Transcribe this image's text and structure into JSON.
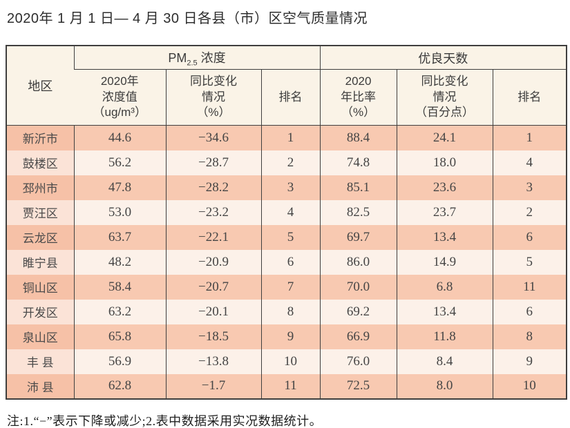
{
  "page": {
    "title": "2020年 1 月 1 日— 4 月 30 日各县（市）区空气质量情况",
    "note": "注:1.“−”表示下降或减少;2.表中数据采用实况数据统计。"
  },
  "table": {
    "header": {
      "region": "地区",
      "pm_group": {
        "prefix": "PM",
        "sub": "2.5",
        "suffix": " 浓度"
      },
      "good_group": "优良天数",
      "pm_value": "2020年\n浓度值\n（ug/m³）",
      "pm_change": "同比变化\n情况\n（%）",
      "pm_rank": "排名",
      "good_rate": "2020\n年比率\n（%）",
      "good_change": "同比变化\n情况\n（百分点）",
      "good_rank": "排名"
    },
    "columns": [
      "region",
      "pm_value",
      "pm_change",
      "pm_rank",
      "good_rate",
      "good_change",
      "good_rank"
    ],
    "rows": [
      {
        "region": "新沂市",
        "pm_value": "44.6",
        "pm_change": "−34.6",
        "pm_rank": "1",
        "good_rate": "88.4",
        "good_change": "24.1",
        "good_rank": "1"
      },
      {
        "region": "鼓楼区",
        "pm_value": "56.2",
        "pm_change": "−28.7",
        "pm_rank": "2",
        "good_rate": "74.8",
        "good_change": "18.0",
        "good_rank": "4"
      },
      {
        "region": "邳州市",
        "pm_value": "47.8",
        "pm_change": "−28.2",
        "pm_rank": "3",
        "good_rate": "85.1",
        "good_change": "23.6",
        "good_rank": "3"
      },
      {
        "region": "贾汪区",
        "pm_value": "53.0",
        "pm_change": "−23.2",
        "pm_rank": "4",
        "good_rate": "82.5",
        "good_change": "23.7",
        "good_rank": "2"
      },
      {
        "region": "云龙区",
        "pm_value": "63.7",
        "pm_change": "−22.1",
        "pm_rank": "5",
        "good_rate": "69.7",
        "good_change": "13.4",
        "good_rank": "6"
      },
      {
        "region": "睢宁县",
        "pm_value": "48.2",
        "pm_change": "−20.9",
        "pm_rank": "6",
        "good_rate": "86.0",
        "good_change": "14.9",
        "good_rank": "5"
      },
      {
        "region": "铜山区",
        "pm_value": "58.4",
        "pm_change": "−20.7",
        "pm_rank": "7",
        "good_rate": "70.0",
        "good_change": "6.8",
        "good_rank": "11"
      },
      {
        "region": "开发区",
        "pm_value": "63.2",
        "pm_change": "−20.1",
        "pm_rank": "8",
        "good_rate": "69.2",
        "good_change": "13.4",
        "good_rank": "6"
      },
      {
        "region": "泉山区",
        "pm_value": "65.8",
        "pm_change": "−18.5",
        "pm_rank": "9",
        "good_rate": "66.9",
        "good_change": "11.8",
        "good_rank": "8"
      },
      {
        "region": "丰 县",
        "pm_value": "56.9",
        "pm_change": "−13.8",
        "pm_rank": "10",
        "good_rate": "76.0",
        "good_change": "8.4",
        "good_rank": "9"
      },
      {
        "region": "沛 县",
        "pm_value": "62.8",
        "pm_change": "−1.7",
        "pm_rank": "11",
        "good_rate": "72.5",
        "good_change": "8.0",
        "good_rank": "10"
      }
    ],
    "colors": {
      "row_odd": "#f8c9b1",
      "row_odd_region": "#f6c1a7",
      "row_even": "#fcf1e9",
      "row_even_region": "#fbe3d7",
      "header_bg": "#faf3e7",
      "border": "#3e3e3e"
    }
  }
}
